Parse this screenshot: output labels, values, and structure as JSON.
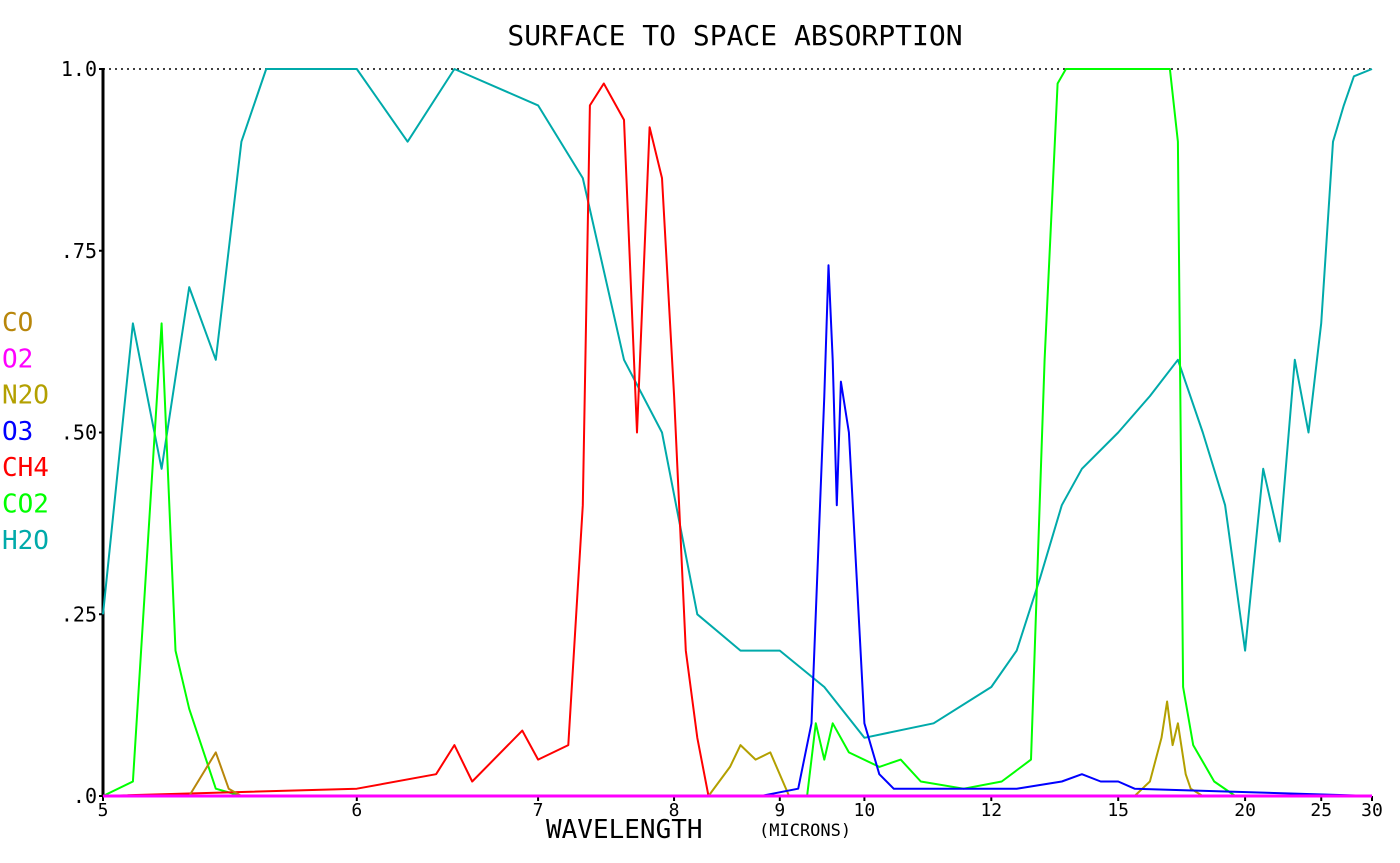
{
  "chart_data": {
    "type": "line",
    "title": "SURFACE TO SPACE ABSORPTION",
    "xlabel": "WAVELENGTH",
    "xlabel_unit": "(MICRONS)",
    "ylabel": "",
    "x_scale": "reciprocal (wavenumber-linear)",
    "xlim": [
      5,
      30
    ],
    "ylim": [
      0,
      1.0
    ],
    "x_ticks": [
      "5",
      "6",
      "7",
      "8",
      "9",
      "10",
      "12",
      "15",
      "20",
      "25",
      "30"
    ],
    "y_ticks": [
      ".0",
      ".25",
      ".50",
      ".75",
      "1.0"
    ],
    "grid": false,
    "reference_line": {
      "y": 1.0,
      "style": "dotted"
    },
    "legend_position": "left",
    "series": [
      {
        "name": "CO",
        "color": "#b8860b",
        "x": [
          5,
          5.3,
          5.4,
          5.45,
          5.5,
          30
        ],
        "y": [
          0,
          0,
          0.06,
          0.01,
          0,
          0
        ]
      },
      {
        "name": "O2",
        "color": "#ff00ff",
        "x": [
          5,
          30
        ],
        "y": [
          0,
          0
        ]
      },
      {
        "name": "N2O",
        "color": "#b3a000",
        "x": [
          5,
          8.3,
          8.5,
          8.6,
          8.75,
          8.9,
          9.1,
          15.5,
          16.0,
          16.4,
          16.6,
          16.8,
          17.0,
          17.3,
          17.5,
          18.0,
          30
        ],
        "y": [
          0,
          0,
          0.04,
          0.07,
          0.05,
          0.06,
          0,
          0,
          0.02,
          0.08,
          0.13,
          0.07,
          0.1,
          0.03,
          0.01,
          0,
          0
        ]
      },
      {
        "name": "O3",
        "color": "#0000ff",
        "x": [
          5,
          8.8,
          9.2,
          9.35,
          9.5,
          9.55,
          9.6,
          9.65,
          9.7,
          9.8,
          9.9,
          10.0,
          10.2,
          10.4,
          12.5,
          13.5,
          14.0,
          14.5,
          15.0,
          15.5,
          30
        ],
        "y": [
          0,
          0,
          0.01,
          0.1,
          0.55,
          0.73,
          0.6,
          0.4,
          0.57,
          0.5,
          0.3,
          0.1,
          0.03,
          0.01,
          0.01,
          0.02,
          0.03,
          0.02,
          0.02,
          0.01,
          0
        ]
      },
      {
        "name": "CH4",
        "color": "#ff0000",
        "x": [
          5,
          6.0,
          6.4,
          6.5,
          6.6,
          6.9,
          7.0,
          7.2,
          7.3,
          7.35,
          7.45,
          7.6,
          7.7,
          7.8,
          7.9,
          8.0,
          8.1,
          8.2,
          8.3,
          30
        ],
        "y": [
          0,
          0.01,
          0.03,
          0.07,
          0.02,
          0.09,
          0.05,
          0.07,
          0.4,
          0.95,
          0.98,
          0.93,
          0.5,
          0.92,
          0.85,
          0.55,
          0.2,
          0.08,
          0,
          0
        ]
      },
      {
        "name": "CO2",
        "color": "#00ff00",
        "x": [
          5,
          5.1,
          5.2,
          5.25,
          5.3,
          5.4,
          5.5,
          9.3,
          9.4,
          9.5,
          9.6,
          9.8,
          10.2,
          10.5,
          10.8,
          11.5,
          12.2,
          12.8,
          13.1,
          13.4,
          13.6,
          13.7,
          15.5,
          16.0,
          16.4,
          16.7,
          17.0,
          17.2,
          17.6,
          18.5,
          19.5,
          30
        ],
        "y": [
          0,
          0.02,
          0.65,
          0.2,
          0.12,
          0.01,
          0,
          0,
          0.1,
          0.05,
          0.1,
          0.06,
          0.04,
          0.05,
          0.02,
          0.01,
          0.02,
          0.05,
          0.6,
          0.98,
          1.0,
          1.0,
          1.0,
          1.0,
          1.0,
          1.0,
          0.9,
          0.15,
          0.07,
          0.02,
          0,
          0
        ]
      },
      {
        "name": "H2O",
        "color": "#00aaaa",
        "x": [
          5,
          5.1,
          5.2,
          5.3,
          5.4,
          5.5,
          5.6,
          6.0,
          6.25,
          6.5,
          7.0,
          7.3,
          7.6,
          7.9,
          8.2,
          8.6,
          9.0,
          9.5,
          10.0,
          11.0,
          12.0,
          12.5,
          13.0,
          13.5,
          14.0,
          15.0,
          16.0,
          17.0,
          18.0,
          19.0,
          20.0,
          21.0,
          22.0,
          23.0,
          24.0,
          25.0,
          26.0,
          27.0,
          28.0,
          30.0
        ],
        "y": [
          0.25,
          0.65,
          0.45,
          0.7,
          0.6,
          0.9,
          1.0,
          1.0,
          0.9,
          1.0,
          0.95,
          0.85,
          0.6,
          0.5,
          0.25,
          0.2,
          0.2,
          0.15,
          0.08,
          0.1,
          0.15,
          0.2,
          0.3,
          0.4,
          0.45,
          0.5,
          0.55,
          0.6,
          0.5,
          0.4,
          0.2,
          0.45,
          0.35,
          0.6,
          0.5,
          0.65,
          0.9,
          0.95,
          0.99,
          1.0
        ]
      }
    ]
  }
}
